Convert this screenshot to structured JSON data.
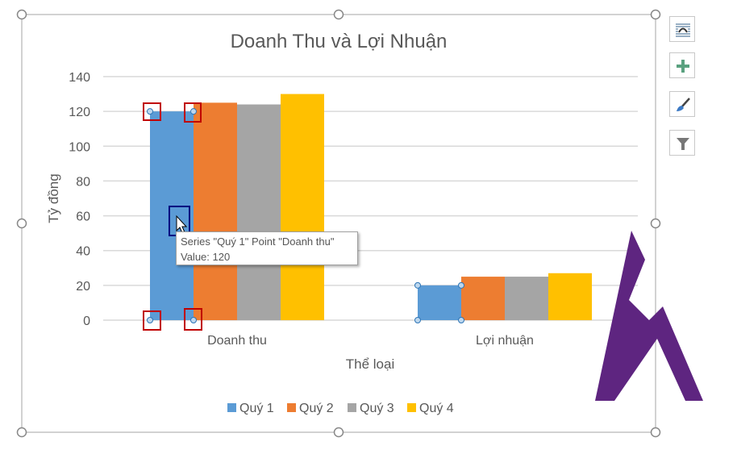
{
  "chart_data": {
    "type": "bar",
    "title": "Doanh Thu và Lợi Nhuận",
    "xlabel": "Thể loại",
    "ylabel": "Tỷ đồng",
    "ylim": [
      0,
      140
    ],
    "yticks": [
      0,
      20,
      40,
      60,
      80,
      100,
      120,
      140
    ],
    "grid": true,
    "legend_position": "bottom",
    "categories": [
      "Doanh thu",
      "Lợi nhuận"
    ],
    "series": [
      {
        "name": "Quý 1",
        "color": "#5b9bd5",
        "values": [
          120,
          20
        ]
      },
      {
        "name": "Quý 2",
        "color": "#ed7d31",
        "values": [
          125,
          25
        ]
      },
      {
        "name": "Quý 3",
        "color": "#a5a5a5",
        "values": [
          124,
          25
        ]
      },
      {
        "name": "Quý 4",
        "color": "#ffc000",
        "values": [
          130,
          27
        ]
      }
    ]
  },
  "tooltip": {
    "line1": "Series \"Quý 1\" Point \"Doanh thu\"",
    "line2": "Value: 120"
  },
  "side_buttons": [
    "chart-elements-layout-icon",
    "add-chart-element-icon",
    "chart-styles-brush-icon",
    "chart-filter-icon"
  ],
  "logo_color": "#5e2580"
}
